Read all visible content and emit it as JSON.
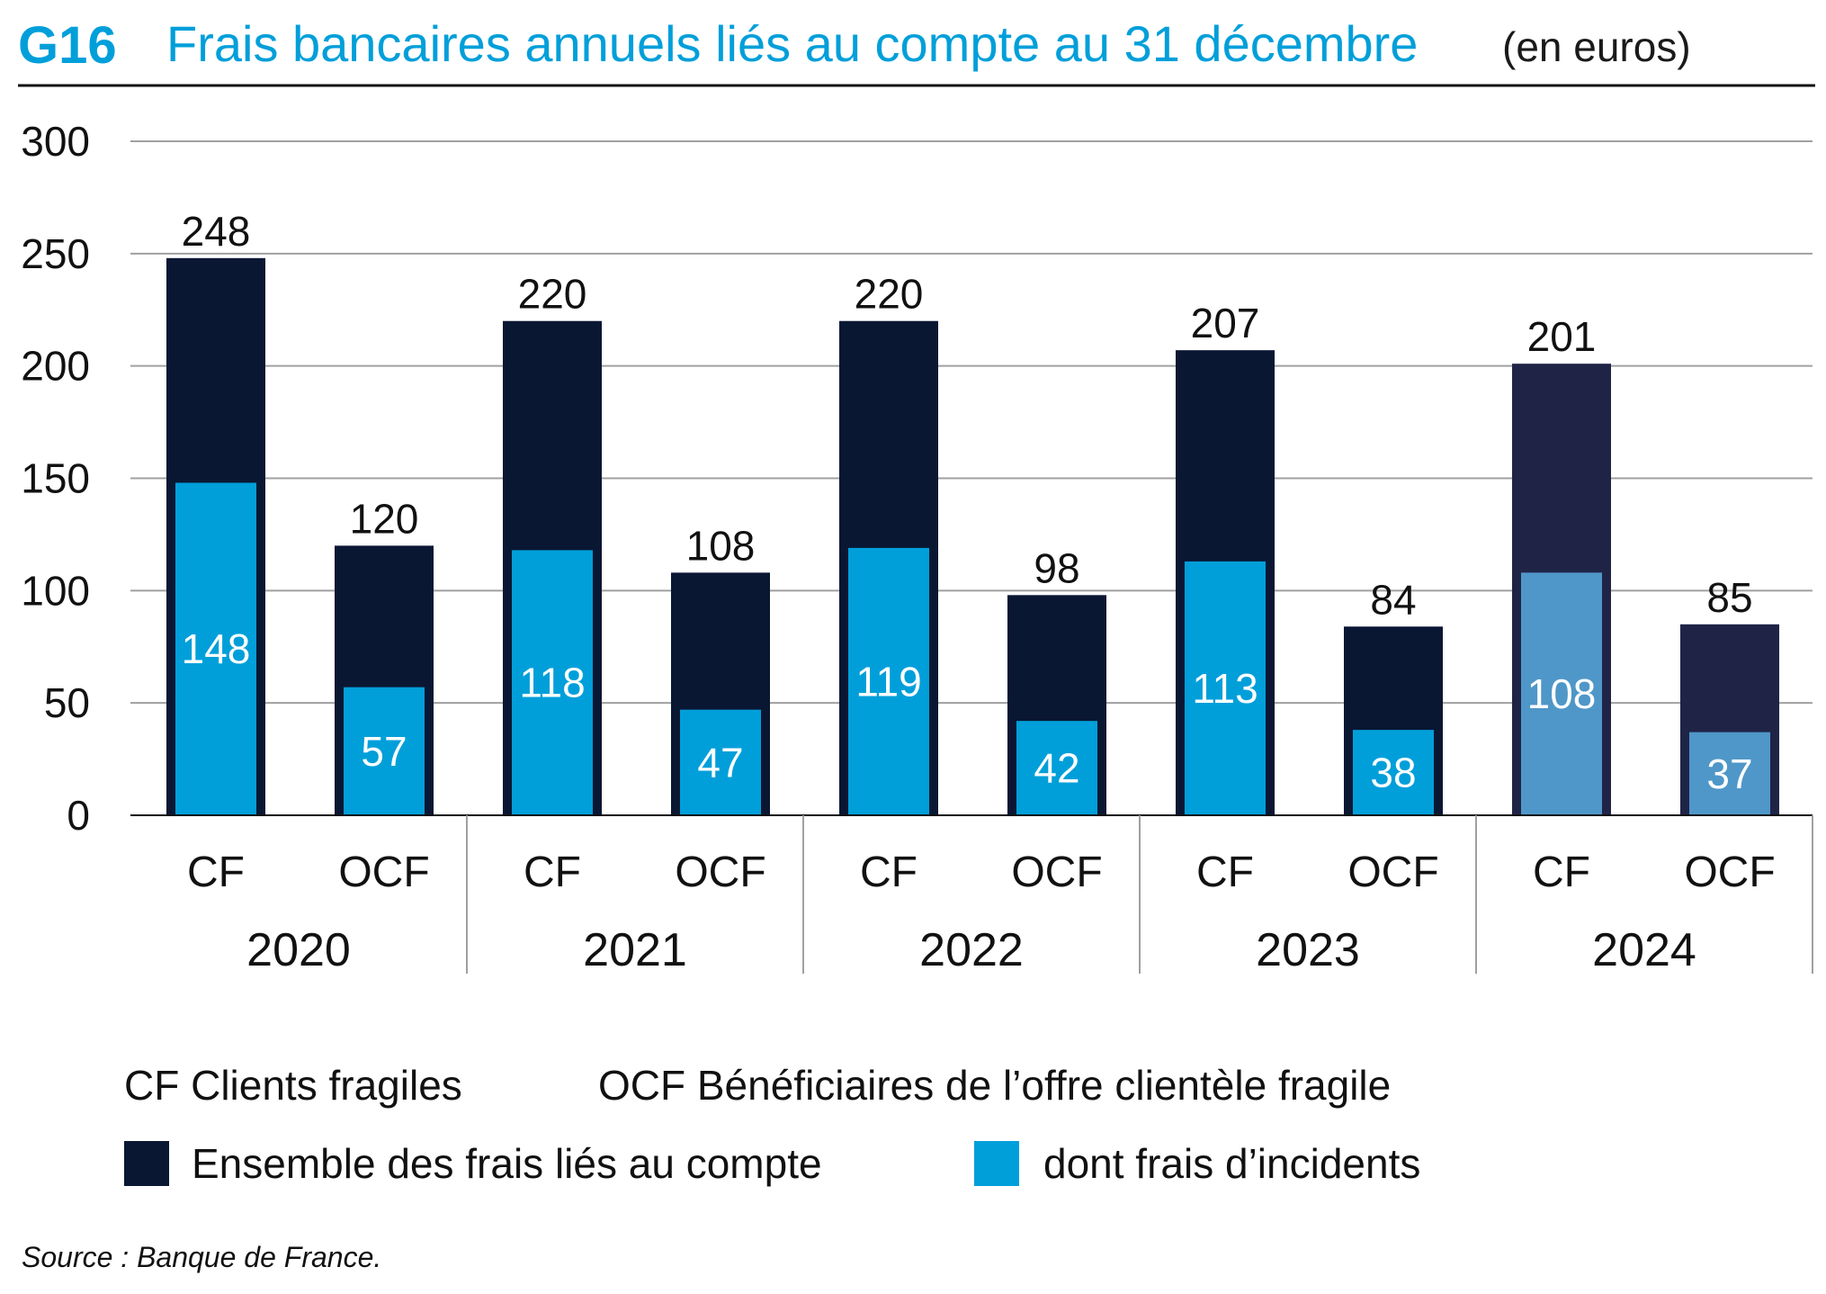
{
  "chart_data": {
    "type": "bar",
    "code": "G16",
    "title": "Frais bancaires annuels liés au compte au 31 décembre",
    "unit": "(en euros)",
    "ylim": [
      0,
      300
    ],
    "yticks": [
      "0",
      "50",
      "100",
      "150",
      "200",
      "250",
      "300"
    ],
    "years": [
      "2020",
      "2021",
      "2022",
      "2023",
      "2024"
    ],
    "categories": [
      "CF",
      "OCF"
    ],
    "bars": [
      {
        "year": "2020",
        "cat": "CF",
        "total": 248,
        "incidents": 148
      },
      {
        "year": "2020",
        "cat": "OCF",
        "total": 120,
        "incidents": 57
      },
      {
        "year": "2021",
        "cat": "CF",
        "total": 220,
        "incidents": 118
      },
      {
        "year": "2021",
        "cat": "OCF",
        "total": 108,
        "incidents": 47
      },
      {
        "year": "2022",
        "cat": "CF",
        "total": 220,
        "incidents": 119
      },
      {
        "year": "2022",
        "cat": "OCF",
        "total": 98,
        "incidents": 42
      },
      {
        "year": "2023",
        "cat": "CF",
        "total": 207,
        "incidents": 113
      },
      {
        "year": "2023",
        "cat": "OCF",
        "total": 84,
        "incidents": 38
      },
      {
        "year": "2024",
        "cat": "CF",
        "total": 201,
        "incidents": 108
      },
      {
        "year": "2024",
        "cat": "OCF",
        "total": 85,
        "incidents": 37
      }
    ],
    "series": [
      {
        "name": "Ensemble des frais liés au compte",
        "color": "#0a1733",
        "color_2024": "#1f2447"
      },
      {
        "name": "dont frais d’incidents",
        "color": "#009fda",
        "color_2024": "#4f97c8"
      }
    ],
    "abbreviations": [
      "CF Clients fragiles",
      "OCF Bénéficiaires de l’offre clientèle fragile"
    ],
    "source": "Source : Banque de France."
  }
}
